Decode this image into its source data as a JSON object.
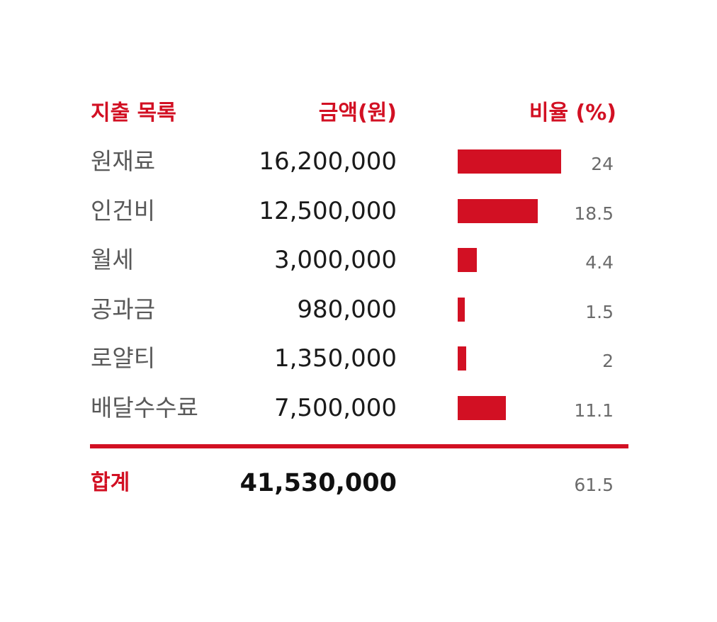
{
  "colors": {
    "accent": "#d21023",
    "category_text": "#595959",
    "amount_text": "#1a1a1a",
    "percent_text": "#6b6b6b"
  },
  "chart_data": {
    "type": "table",
    "headers": {
      "category": "지출 목록",
      "amount": "금액(원)",
      "ratio": "비율 (%)"
    },
    "rows": [
      {
        "category": "원재료",
        "amount": 16200000,
        "amount_label": "16,200,000",
        "ratio": 24,
        "ratio_label": "24"
      },
      {
        "category": "인건비",
        "amount": 12500000,
        "amount_label": "12,500,000",
        "ratio": 18.5,
        "ratio_label": "18.5"
      },
      {
        "category": "월세",
        "amount": 3000000,
        "amount_label": "3,000,000",
        "ratio": 4.4,
        "ratio_label": "4.4"
      },
      {
        "category": "공과금",
        "amount": 980000,
        "amount_label": "980,000",
        "ratio": 1.5,
        "ratio_label": "1.5"
      },
      {
        "category": "로얄티",
        "amount": 1350000,
        "amount_label": "1,350,000",
        "ratio": 2,
        "ratio_label": "2"
      },
      {
        "category": "배달수수료",
        "amount": 7500000,
        "amount_label": "7,500,000",
        "ratio": 11.1,
        "ratio_label": "11.1"
      }
    ],
    "total": {
      "label": "합계",
      "amount": 41530000,
      "amount_label": "41,530,000",
      "ratio": 61.5,
      "ratio_label": "61.5"
    }
  }
}
